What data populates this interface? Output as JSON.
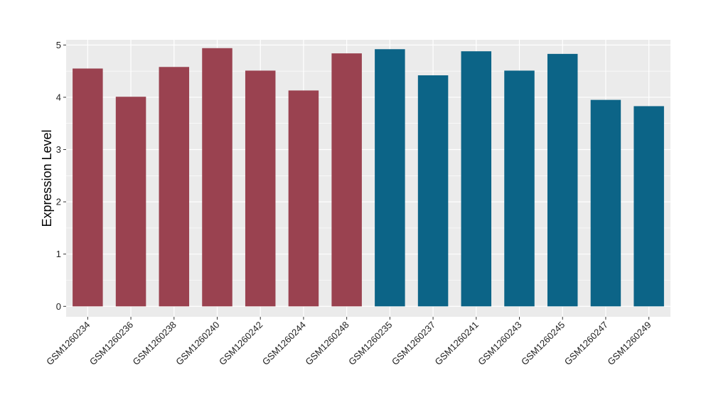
{
  "chart_data": {
    "type": "bar",
    "title": "",
    "xlabel": "",
    "ylabel": "Expression Level",
    "ylim": [
      -0.2,
      5.1
    ],
    "yticks": [
      0,
      1,
      2,
      3,
      4,
      5
    ],
    "grid": true,
    "legend": "none",
    "colors": {
      "group_a": "#9A4250",
      "group_b": "#0C6487",
      "panel": "#EBEBEB",
      "grid": "#FFFFFF"
    },
    "categories": [
      "GSM1260234",
      "GSM1260236",
      "GSM1260238",
      "GSM1260240",
      "GSM1260242",
      "GSM1260244",
      "GSM1260248",
      "GSM1260235",
      "GSM1260237",
      "GSM1260241",
      "GSM1260243",
      "GSM1260245",
      "GSM1260247",
      "GSM1260249"
    ],
    "values": [
      4.55,
      4.01,
      4.58,
      4.94,
      4.51,
      4.13,
      4.84,
      4.92,
      4.42,
      4.88,
      4.51,
      4.83,
      3.95,
      3.83
    ],
    "groups": [
      "group_a",
      "group_a",
      "group_a",
      "group_a",
      "group_a",
      "group_a",
      "group_a",
      "group_b",
      "group_b",
      "group_b",
      "group_b",
      "group_b",
      "group_b",
      "group_b"
    ]
  }
}
